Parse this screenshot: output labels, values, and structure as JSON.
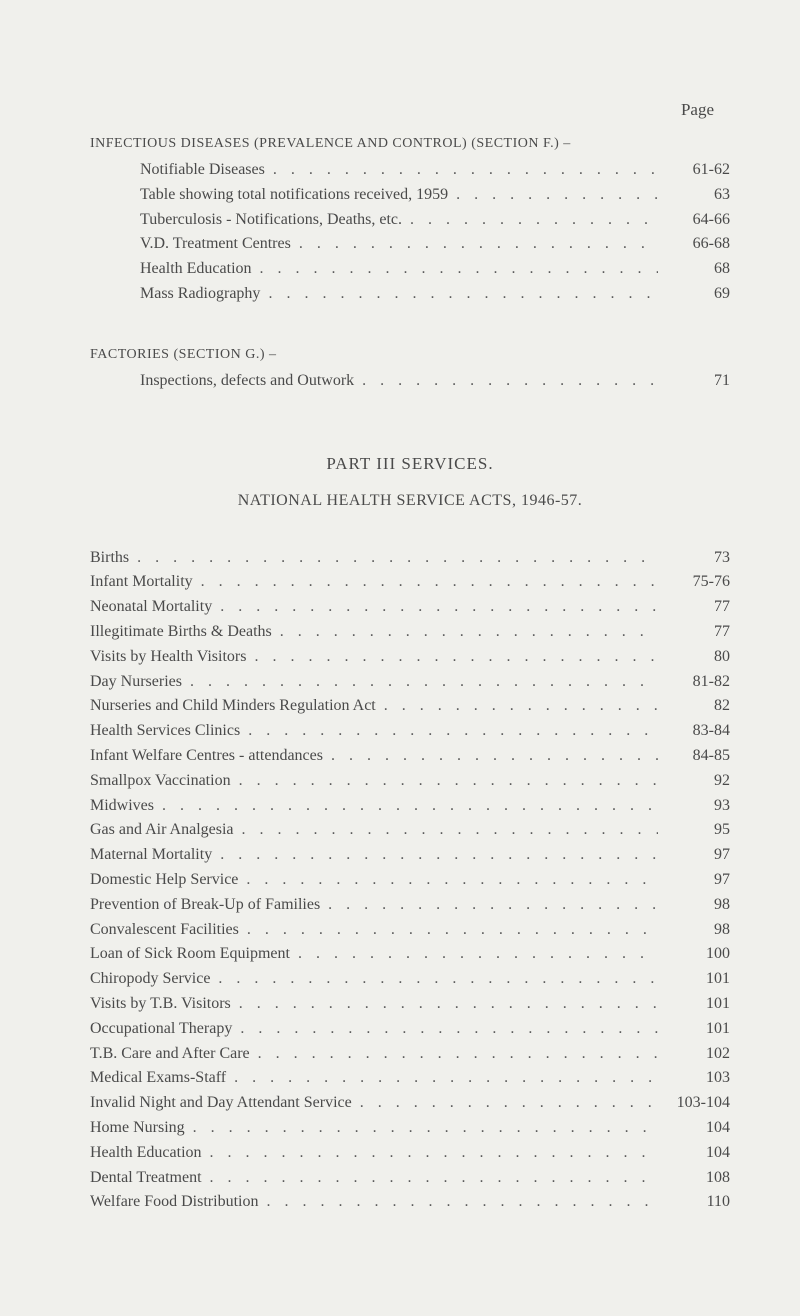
{
  "page_label": "Page",
  "dots": ". . . . . . . . . . . . . . . . . . . . . . . . . . . . . . . . . . . .",
  "sections": {
    "infectious": {
      "heading": "INFECTIOUS DISEASES (PREVALENCE AND CONTROL) (SECTION F.) –",
      "entries": [
        {
          "title": "Notifiable Diseases",
          "page": "61-62"
        },
        {
          "title": "Table showing total notifications received, 1959",
          "page": "63"
        },
        {
          "title": "Tuberculosis - Notifications, Deaths, etc.",
          "page": "64-66"
        },
        {
          "title": "V.D. Treatment Centres",
          "page": "66-68"
        },
        {
          "title": "Health Education",
          "page": "68"
        },
        {
          "title": "Mass Radiography",
          "page": "69"
        }
      ]
    },
    "factories": {
      "heading": "FACTORIES (SECTION G.) –",
      "entries": [
        {
          "title": "Inspections, defects and Outwork",
          "page": "71"
        }
      ]
    },
    "part3": {
      "heading": "PART III SERVICES.",
      "subheading": "NATIONAL HEALTH SERVICE ACTS, 1946-57.",
      "entries": [
        {
          "title": "Births",
          "page": "73"
        },
        {
          "title": "Infant Mortality",
          "page": "75-76"
        },
        {
          "title": "Neonatal Mortality",
          "page": "77"
        },
        {
          "title": "Illegitimate Births & Deaths",
          "page": "77"
        },
        {
          "title": "Visits by Health Visitors",
          "page": "80"
        },
        {
          "title": "Day Nurseries",
          "page": "81-82"
        },
        {
          "title": "Nurseries and Child Minders Regulation Act",
          "page": "82"
        },
        {
          "title": "Health Services Clinics",
          "page": "83-84"
        },
        {
          "title": "Infant Welfare Centres - attendances",
          "page": "84-85"
        },
        {
          "title": "Smallpox Vaccination",
          "page": "92"
        },
        {
          "title": "Midwives",
          "page": "93"
        },
        {
          "title": "Gas and Air Analgesia",
          "page": "95"
        },
        {
          "title": "Maternal Mortality",
          "page": "97"
        },
        {
          "title": "Domestic Help Service",
          "page": "97"
        },
        {
          "title": "Prevention of Break-Up of Families",
          "page": "98"
        },
        {
          "title": "Convalescent Facilities",
          "page": "98"
        },
        {
          "title": "Loan of Sick Room Equipment",
          "page": "100"
        },
        {
          "title": "Chiropody Service",
          "page": "101"
        },
        {
          "title": "Visits by T.B. Visitors",
          "page": "101"
        },
        {
          "title": "Occupational Therapy",
          "page": "101"
        },
        {
          "title": "T.B. Care and After Care",
          "page": "102"
        },
        {
          "title": "Medical Exams-Staff",
          "page": "103"
        },
        {
          "title": "Invalid Night and Day Attendant Service",
          "page": "103-104"
        },
        {
          "title": "Home Nursing",
          "page": "104"
        },
        {
          "title": "Health Education",
          "page": "104"
        },
        {
          "title": "Dental Treatment",
          "page": "108"
        },
        {
          "title": "Welfare Food Distribution",
          "page": "110"
        }
      ]
    }
  }
}
